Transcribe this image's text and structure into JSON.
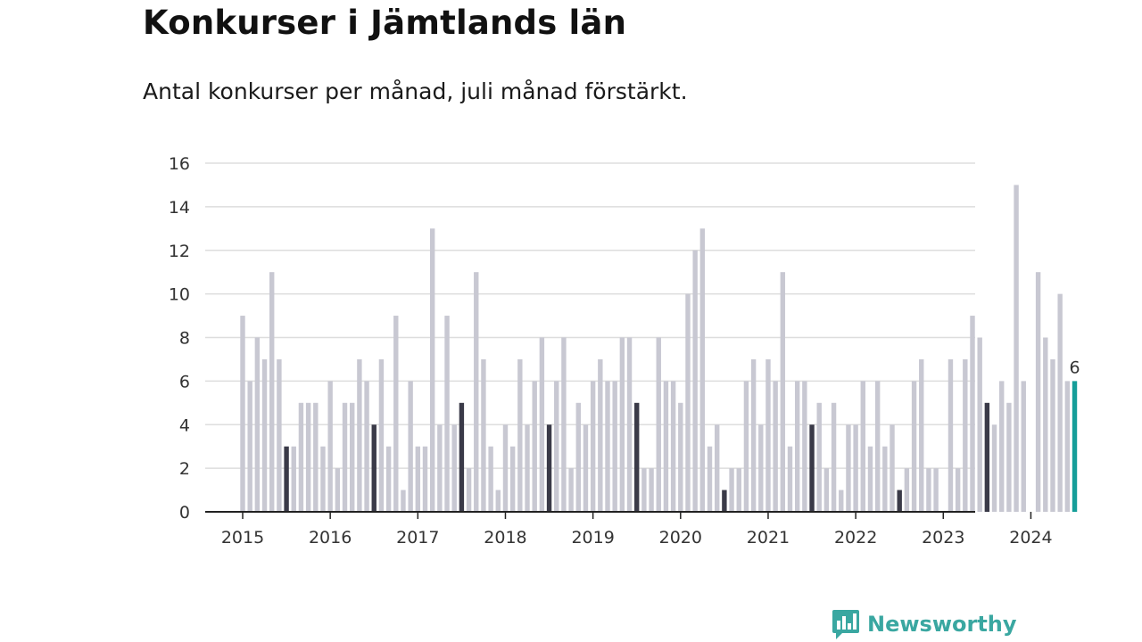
{
  "header": {
    "title": "Konkurser i Jämtlands län",
    "subtitle": "Antal konkurser per månad, juli månad förstärkt."
  },
  "logo": {
    "text": "Newsworthy",
    "icon": "newsworthy-logo-icon"
  },
  "colors": {
    "bar": "#c8c8d2",
    "highlight": "#3a3a48",
    "latest": "#159e99",
    "grid": "#dddddd",
    "axis": "#222222",
    "logo": "#3aa7a1"
  },
  "chart_data": {
    "type": "bar",
    "title": "Konkurser i Jämtlands län",
    "subtitle": "Antal konkurser per månad, juli månad förstärkt.",
    "xlabel": "",
    "ylabel": "",
    "ylim": [
      0,
      16
    ],
    "yticks": [
      0,
      2,
      4,
      6,
      8,
      10,
      12,
      14,
      16
    ],
    "grid": true,
    "start": "2015-01",
    "end": "2024-07",
    "xtick_labels": [
      "2015",
      "2016",
      "2017",
      "2018",
      "2019",
      "2020",
      "2021",
      "2022",
      "2023",
      "2024"
    ],
    "highlight_month": "July",
    "last_value_label": "6",
    "values": [
      9,
      6,
      8,
      7,
      11,
      7,
      3,
      3,
      5,
      5,
      5,
      3,
      6,
      2,
      5,
      5,
      7,
      6,
      4,
      7,
      3,
      9,
      1,
      6,
      3,
      3,
      13,
      4,
      9,
      4,
      5,
      2,
      11,
      7,
      3,
      1,
      4,
      3,
      7,
      4,
      6,
      8,
      4,
      6,
      8,
      2,
      5,
      4,
      6,
      7,
      6,
      6,
      8,
      8,
      5,
      2,
      2,
      8,
      6,
      6,
      5,
      10,
      12,
      13,
      3,
      4,
      1,
      2,
      2,
      6,
      7,
      4,
      7,
      6,
      11,
      3,
      6,
      6,
      4,
      5,
      2,
      5,
      1,
      4,
      4,
      6,
      3,
      6,
      3,
      4,
      1,
      2,
      6,
      7,
      2,
      2,
      0,
      7,
      2,
      7,
      9,
      8,
      5,
      4,
      6,
      5,
      15,
      6,
      0,
      11,
      8,
      7,
      10,
      6,
      6
    ]
  }
}
